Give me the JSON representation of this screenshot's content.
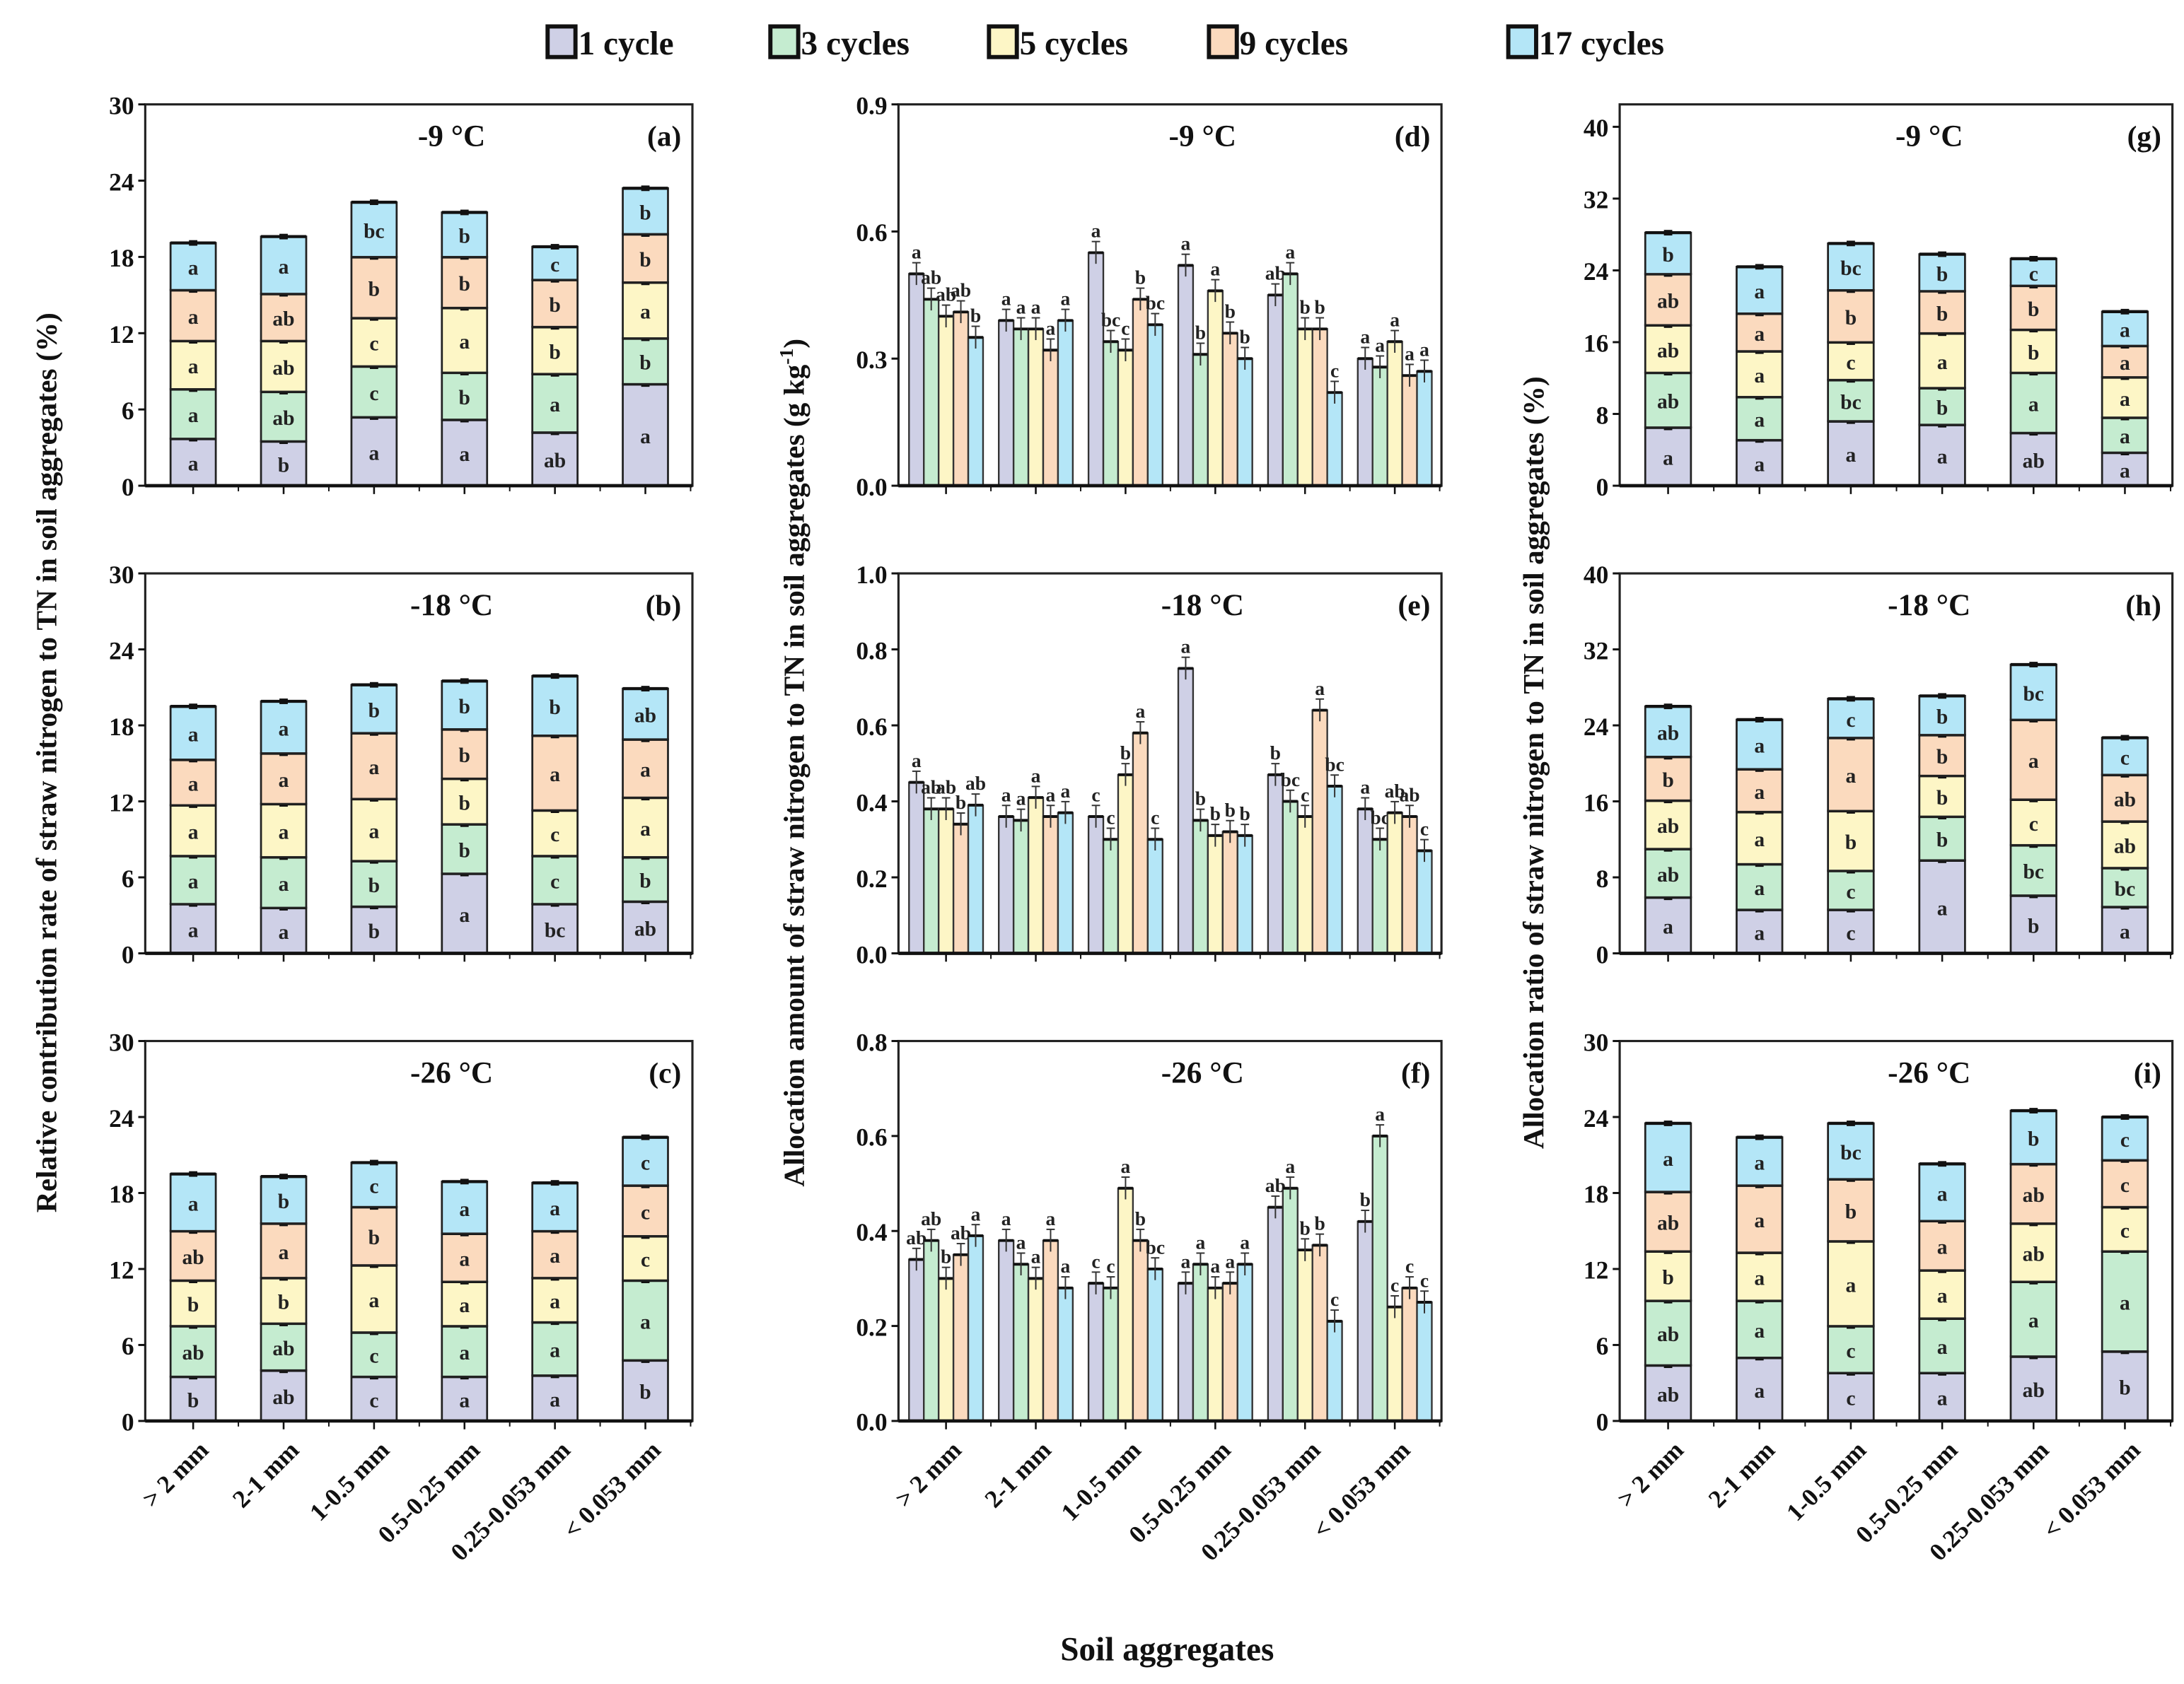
{
  "legend": [
    "1 cycle",
    "3 cycles",
    "5 cycles",
    "9 cycles",
    "17 cycles"
  ],
  "colors": [
    "#cfd0e6",
    "#c5ecd0",
    "#fdf6c6",
    "#fbdabe",
    "#b4e6f7"
  ],
  "x_title": "Soil aggregates",
  "y_titles": [
    "Relative contribution rate of straw nitrogen to TN in soil aggregates (%)",
    "Allocation amount of straw nitrogen to TN in soil aggregates  (g kg",
    "Allocation ratio of straw nitrogen to TN in soil aggregates (%)"
  ],
  "y_title_unit_sup": "-1",
  "y_title_unit_close": ")",
  "categories": [
    "> 2 mm",
    "2-1 mm",
    "1-0.5 mm",
    "0.5-0.25 mm",
    "0.25-0.053 mm",
    "< 0.053 mm"
  ],
  "chart_data": [
    {
      "panel": "(a)",
      "title": "-9 °C",
      "type": "bar",
      "stacked": true,
      "column": 0,
      "row": 0,
      "ylim": [
        0,
        30
      ],
      "yticks": [
        0,
        6,
        12,
        18,
        24,
        30
      ],
      "series": [
        {
          "name": "1 cycle",
          "values": [
            3.7,
            3.5,
            5.4,
            5.2,
            4.2,
            8.0
          ],
          "letters": [
            "a",
            "b",
            "a",
            "a",
            "ab",
            "a"
          ]
        },
        {
          "name": "3 cycles",
          "values": [
            3.9,
            3.9,
            4.0,
            3.7,
            4.6,
            3.6
          ],
          "letters": [
            "a",
            "ab",
            "c",
            "b",
            "a",
            "b"
          ]
        },
        {
          "name": "5 cycles",
          "values": [
            3.8,
            4.0,
            3.8,
            5.1,
            3.7,
            4.4
          ],
          "letters": [
            "a",
            "ab",
            "c",
            "a",
            "b",
            "a"
          ]
        },
        {
          "name": "9 cycles",
          "values": [
            4.0,
            3.7,
            4.8,
            4.0,
            3.7,
            3.8
          ],
          "letters": [
            "a",
            "ab",
            "b",
            "b",
            "b",
            "b"
          ]
        },
        {
          "name": "17 cycles",
          "values": [
            3.7,
            4.5,
            4.3,
            3.5,
            2.6,
            3.6
          ],
          "letters": [
            "a",
            "a",
            "bc",
            "b",
            "c",
            "b"
          ]
        }
      ]
    },
    {
      "panel": "(b)",
      "title": "-18 °C",
      "type": "bar",
      "stacked": true,
      "column": 0,
      "row": 1,
      "ylim": [
        0,
        30
      ],
      "yticks": [
        0,
        6,
        12,
        18,
        24,
        30
      ],
      "series": [
        {
          "name": "1 cycle",
          "values": [
            3.9,
            3.6,
            3.7,
            6.3,
            3.9,
            4.1
          ],
          "letters": [
            "a",
            "a",
            "b",
            "a",
            "bc",
            "ab"
          ]
        },
        {
          "name": "3 cycles",
          "values": [
            3.8,
            4.0,
            3.6,
            3.9,
            3.8,
            3.5
          ],
          "letters": [
            "a",
            "a",
            "b",
            "b",
            "c",
            "b"
          ]
        },
        {
          "name": "5 cycles",
          "values": [
            4.0,
            4.2,
            4.9,
            3.6,
            3.6,
            4.7
          ],
          "letters": [
            "a",
            "a",
            "a",
            "b",
            "c",
            "a"
          ]
        },
        {
          "name": "9 cycles",
          "values": [
            3.6,
            4.0,
            5.2,
            3.9,
            5.9,
            4.6
          ],
          "letters": [
            "a",
            "a",
            "a",
            "b",
            "a",
            "a"
          ]
        },
        {
          "name": "17 cycles",
          "values": [
            4.2,
            4.1,
            3.8,
            3.8,
            4.7,
            4.0
          ],
          "letters": [
            "a",
            "a",
            "b",
            "b",
            "b",
            "ab"
          ]
        }
      ]
    },
    {
      "panel": "(c)",
      "title": "-26 °C",
      "type": "bar",
      "stacked": true,
      "column": 0,
      "row": 2,
      "ylim": [
        0,
        30
      ],
      "yticks": [
        0,
        6,
        12,
        18,
        24,
        30
      ],
      "series": [
        {
          "name": "1 cycle",
          "values": [
            3.5,
            4.0,
            3.5,
            3.5,
            3.6,
            4.8
          ],
          "letters": [
            "b",
            "ab",
            "c",
            "a",
            "a",
            "b"
          ]
        },
        {
          "name": "3 cycles",
          "values": [
            4.0,
            3.7,
            3.5,
            4.0,
            4.2,
            6.3
          ],
          "letters": [
            "ab",
            "ab",
            "c",
            "a",
            "a",
            "a"
          ]
        },
        {
          "name": "5 cycles",
          "values": [
            3.6,
            3.6,
            5.3,
            3.5,
            3.5,
            3.5
          ],
          "letters": [
            "b",
            "b",
            "a",
            "a",
            "a",
            "c"
          ]
        },
        {
          "name": "9 cycles",
          "values": [
            3.9,
            4.3,
            4.6,
            3.8,
            3.7,
            4.0
          ],
          "letters": [
            "ab",
            "a",
            "b",
            "a",
            "a",
            "c"
          ]
        },
        {
          "name": "17 cycles",
          "values": [
            4.5,
            3.7,
            3.5,
            4.1,
            3.8,
            3.8
          ],
          "letters": [
            "a",
            "b",
            "c",
            "a",
            "a",
            "c"
          ]
        }
      ]
    },
    {
      "panel": "(d)",
      "title": "-9 °C",
      "type": "bar",
      "stacked": false,
      "column": 1,
      "row": 0,
      "ylim": [
        0,
        0.9
      ],
      "yticks": [
        "0.0",
        "0.3",
        "0.6",
        "0.9"
      ],
      "series": [
        {
          "name": "1 cycle",
          "values": [
            0.5,
            0.39,
            0.55,
            0.52,
            0.45,
            0.3
          ],
          "letters": [
            "a",
            "a",
            "a",
            "a",
            "ab",
            "a"
          ]
        },
        {
          "name": "3 cycles",
          "values": [
            0.44,
            0.37,
            0.34,
            0.31,
            0.5,
            0.28
          ],
          "letters": [
            "ab",
            "a",
            "bc",
            "b",
            "a",
            "a"
          ]
        },
        {
          "name": "5 cycles",
          "values": [
            0.4,
            0.37,
            0.32,
            0.46,
            0.37,
            0.34
          ],
          "letters": [
            "ab",
            "a",
            "c",
            "a",
            "b",
            "a"
          ]
        },
        {
          "name": "9 cycles",
          "values": [
            0.41,
            0.32,
            0.44,
            0.36,
            0.37,
            0.26
          ],
          "letters": [
            "ab",
            "a",
            "b",
            "b",
            "b",
            "a"
          ]
        },
        {
          "name": "17 cycles",
          "values": [
            0.35,
            0.39,
            0.38,
            0.3,
            0.22,
            0.27
          ],
          "letters": [
            "b",
            "a",
            "bc",
            "b",
            "c",
            "a"
          ]
        }
      ]
    },
    {
      "panel": "(e)",
      "title": "-18 °C",
      "type": "bar",
      "stacked": false,
      "column": 1,
      "row": 1,
      "ylim": [
        0,
        1.0
      ],
      "yticks": [
        "0.0",
        "0.2",
        "0.4",
        "0.6",
        "0.8",
        "1.0"
      ],
      "series": [
        {
          "name": "1 cycle",
          "values": [
            0.45,
            0.36,
            0.36,
            0.75,
            0.47,
            0.38
          ],
          "letters": [
            "a",
            "a",
            "c",
            "a",
            "b",
            "a"
          ]
        },
        {
          "name": "3 cycles",
          "values": [
            0.38,
            0.35,
            0.3,
            0.35,
            0.4,
            0.3
          ],
          "letters": [
            "ab",
            "a",
            "c",
            "b",
            "bc",
            "bc"
          ]
        },
        {
          "name": "5 cycles",
          "values": [
            0.38,
            0.41,
            0.47,
            0.31,
            0.36,
            0.37
          ],
          "letters": [
            "ab",
            "a",
            "b",
            "b",
            "c",
            "ab"
          ]
        },
        {
          "name": "9 cycles",
          "values": [
            0.34,
            0.36,
            0.58,
            0.32,
            0.64,
            0.36
          ],
          "letters": [
            "b",
            "a",
            "a",
            "b",
            "a",
            "ab"
          ]
        },
        {
          "name": "17 cycles",
          "values": [
            0.39,
            0.37,
            0.3,
            0.31,
            0.44,
            0.27
          ],
          "letters": [
            "ab",
            "a",
            "c",
            "b",
            "bc",
            "c"
          ]
        }
      ]
    },
    {
      "panel": "(f)",
      "title": "-26 °C",
      "type": "bar",
      "stacked": false,
      "column": 1,
      "row": 2,
      "ylim": [
        0,
        0.8
      ],
      "yticks": [
        "0.0",
        "0.2",
        "0.4",
        "0.6",
        "0.8"
      ],
      "series": [
        {
          "name": "1 cycle",
          "values": [
            0.34,
            0.38,
            0.29,
            0.29,
            0.45,
            0.42
          ],
          "letters": [
            "ab",
            "a",
            "c",
            "a",
            "ab",
            "b"
          ]
        },
        {
          "name": "3 cycles",
          "values": [
            0.38,
            0.33,
            0.28,
            0.33,
            0.49,
            0.6
          ],
          "letters": [
            "ab",
            "a",
            "c",
            "a",
            "a",
            "a"
          ]
        },
        {
          "name": "5 cycles",
          "values": [
            0.3,
            0.3,
            0.49,
            0.28,
            0.36,
            0.24
          ],
          "letters": [
            "b",
            "a",
            "a",
            "a",
            "b",
            "c"
          ]
        },
        {
          "name": "9 cycles",
          "values": [
            0.35,
            0.38,
            0.38,
            0.29,
            0.37,
            0.28
          ],
          "letters": [
            "ab",
            "a",
            "b",
            "a",
            "b",
            "c"
          ]
        },
        {
          "name": "17 cycles",
          "values": [
            0.39,
            0.28,
            0.32,
            0.33,
            0.21,
            0.25
          ],
          "letters": [
            "a",
            "a",
            "bc",
            "a",
            "c",
            "c"
          ]
        }
      ]
    },
    {
      "panel": "(g)",
      "title": "-9 °C",
      "type": "bar",
      "stacked": true,
      "column": 2,
      "row": 0,
      "ylim": [
        0,
        42.5
      ],
      "yticks": [
        0,
        8,
        16,
        24,
        32,
        40
      ],
      "series": [
        {
          "name": "1 cycle",
          "values": [
            6.5,
            5.1,
            7.2,
            6.8,
            5.9,
            3.7
          ],
          "letters": [
            "a",
            "a",
            "a",
            "a",
            "ab",
            "a"
          ]
        },
        {
          "name": "3 cycles",
          "values": [
            6.1,
            4.8,
            4.6,
            4.1,
            6.7,
            3.9
          ],
          "letters": [
            "ab",
            "a",
            "bc",
            "b",
            "a",
            "a"
          ]
        },
        {
          "name": "5 cycles",
          "values": [
            5.3,
            5.1,
            4.2,
            6.1,
            4.8,
            4.5
          ],
          "letters": [
            "ab",
            "a",
            "c",
            "a",
            "b",
            "a"
          ]
        },
        {
          "name": "9 cycles",
          "values": [
            5.7,
            4.2,
            5.8,
            4.7,
            4.9,
            3.5
          ],
          "letters": [
            "ab",
            "a",
            "b",
            "b",
            "b",
            "a"
          ]
        },
        {
          "name": "17 cycles",
          "values": [
            4.6,
            5.2,
            5.2,
            4.1,
            3.0,
            3.8
          ],
          "letters": [
            "b",
            "a",
            "bc",
            "b",
            "c",
            "a"
          ]
        }
      ]
    },
    {
      "panel": "(h)",
      "title": "-18 °C",
      "type": "bar",
      "stacked": true,
      "column": 2,
      "row": 1,
      "ylim": [
        0,
        40
      ],
      "yticks": [
        0,
        8,
        16,
        24,
        32,
        40
      ],
      "series": [
        {
          "name": "1 cycle",
          "values": [
            5.9,
            4.6,
            4.6,
            9.8,
            6.1,
            4.9
          ],
          "letters": [
            "a",
            "a",
            "c",
            "a",
            "b",
            "a"
          ]
        },
        {
          "name": "3 cycles",
          "values": [
            5.1,
            4.8,
            4.1,
            4.6,
            5.3,
            4.1
          ],
          "letters": [
            "ab",
            "a",
            "c",
            "b",
            "bc",
            "bc"
          ]
        },
        {
          "name": "5 cycles",
          "values": [
            5.1,
            5.5,
            6.3,
            4.3,
            4.8,
            4.9
          ],
          "letters": [
            "ab",
            "a",
            "b",
            "b",
            "c",
            "ab"
          ]
        },
        {
          "name": "9 cycles",
          "values": [
            4.6,
            4.5,
            7.7,
            4.3,
            8.4,
            4.9
          ],
          "letters": [
            "b",
            "a",
            "a",
            "b",
            "a",
            "ab"
          ]
        },
        {
          "name": "17 cycles",
          "values": [
            5.3,
            5.2,
            4.1,
            4.1,
            5.8,
            3.9
          ],
          "letters": [
            "ab",
            "a",
            "c",
            "b",
            "bc",
            "c"
          ]
        }
      ]
    },
    {
      "panel": "(i)",
      "title": "-26 °C",
      "type": "bar",
      "stacked": true,
      "column": 2,
      "row": 2,
      "ylim": [
        0,
        30
      ],
      "yticks": [
        0,
        6,
        12,
        18,
        24,
        30
      ],
      "series": [
        {
          "name": "1 cycle",
          "values": [
            4.4,
            5.0,
            3.8,
            3.8,
            5.1,
            5.5
          ],
          "letters": [
            "ab",
            "a",
            "c",
            "a",
            "ab",
            "b"
          ]
        },
        {
          "name": "3 cycles",
          "values": [
            5.1,
            4.5,
            3.7,
            4.3,
            5.9,
            7.9
          ],
          "letters": [
            "ab",
            "a",
            "c",
            "a",
            "a",
            "a"
          ]
        },
        {
          "name": "5 cycles",
          "values": [
            3.9,
            3.8,
            6.7,
            3.8,
            4.6,
            3.5
          ],
          "letters": [
            "b",
            "a",
            "a",
            "a",
            "ab",
            "c"
          ]
        },
        {
          "name": "9 cycles",
          "values": [
            4.7,
            5.3,
            4.9,
            3.9,
            4.7,
            3.7
          ],
          "letters": [
            "ab",
            "a",
            "b",
            "a",
            "ab",
            "c"
          ]
        },
        {
          "name": "17 cycles",
          "values": [
            5.4,
            3.8,
            4.4,
            4.5,
            4.2,
            3.4
          ],
          "letters": [
            "a",
            "a",
            "bc",
            "a",
            "b",
            "c"
          ]
        }
      ]
    }
  ]
}
